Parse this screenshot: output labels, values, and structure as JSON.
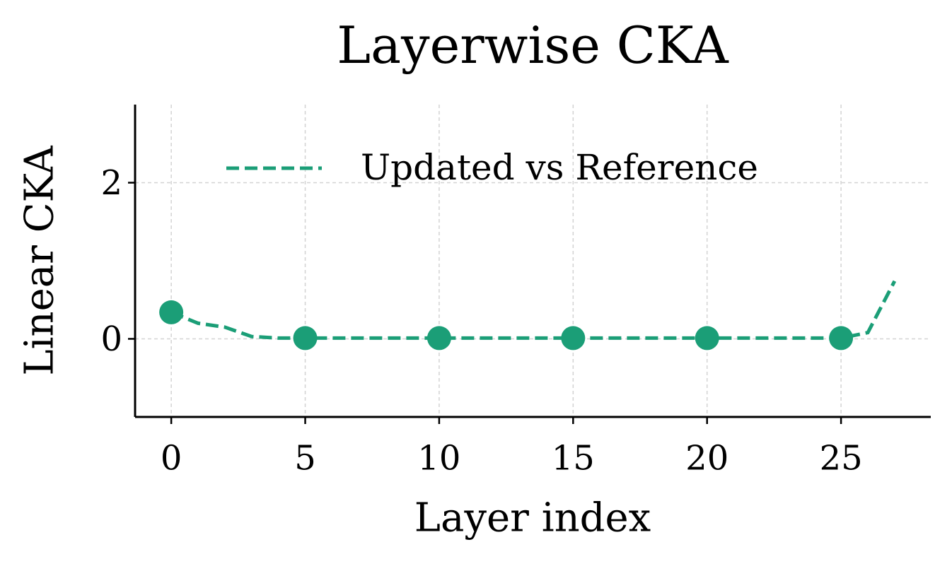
{
  "chart_data": {
    "type": "line",
    "title": "Layerwise CKA",
    "xlabel": "Layer index",
    "ylabel": "Linear CKA",
    "x": [
      0,
      1,
      2,
      3,
      4,
      5,
      6,
      7,
      8,
      9,
      10,
      11,
      12,
      13,
      14,
      15,
      16,
      17,
      18,
      19,
      20,
      21,
      22,
      23,
      24,
      25,
      26,
      27
    ],
    "series": [
      {
        "name": "Updated vs Reference",
        "color": "#1b9e77",
        "values": [
          0.34,
          0.2,
          0.15,
          0.03,
          0.01,
          0.01,
          0.01,
          0.01,
          0.01,
          0.01,
          0.01,
          0.01,
          0.01,
          0.01,
          0.01,
          0.01,
          0.01,
          0.01,
          0.01,
          0.01,
          0.01,
          0.01,
          0.01,
          0.01,
          0.01,
          0.01,
          0.08,
          0.74
        ]
      }
    ],
    "linestyle": "dashed",
    "markevery": 5,
    "xlim": [
      -1.35,
      28.35
    ],
    "xticks": [
      0,
      5,
      10,
      15,
      20,
      25
    ],
    "ylim": [
      -1,
      3
    ],
    "yticks": [
      0,
      2
    ],
    "grid": true,
    "legend": "upper right"
  }
}
